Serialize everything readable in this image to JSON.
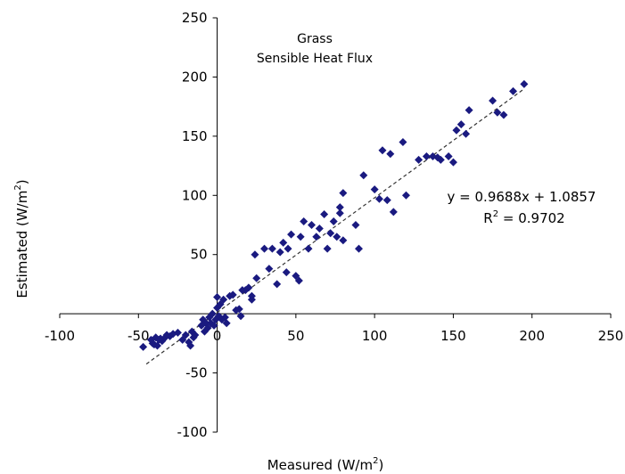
{
  "chart_data": {
    "type": "scatter",
    "title": "Grass",
    "subtitle": "Sensible Heat Flux",
    "xlabel": {
      "text": "Measured (W/m",
      "sup": "2",
      "end": ")"
    },
    "ylabel": {
      "text": "Estimated (W/m",
      "sup": "2",
      "end": ")"
    },
    "xlim": [
      -100,
      250
    ],
    "ylim": [
      -100,
      250
    ],
    "xticks": [
      -100,
      -50,
      0,
      50,
      100,
      150,
      200,
      250
    ],
    "yticks": [
      -100,
      -50,
      0,
      50,
      100,
      150,
      200,
      250
    ],
    "grid": false,
    "legend": "none",
    "marker_color": "#1a1a80",
    "trendline": {
      "slope": 0.9688,
      "intercept": 1.0857,
      "x_range": [
        -45,
        195
      ],
      "style": "dashed"
    },
    "equation": "y = 0.9688x + 1.0857",
    "r2": {
      "prefix": "R",
      "sup": "2",
      "value": " = 0.9702"
    },
    "series": [
      {
        "x": [
          -47,
          -42,
          -41,
          -40,
          -39,
          -38,
          -37,
          -36,
          -35,
          -33,
          -32,
          -30,
          -28,
          -25,
          -22,
          -20,
          -18,
          -17,
          -16,
          -15,
          -14,
          -10,
          -9,
          -8,
          -7,
          -6,
          -5,
          -4,
          -3,
          -2,
          -1,
          0,
          0,
          1,
          2,
          3,
          4,
          5,
          6,
          8,
          10,
          12,
          14,
          15,
          16,
          18,
          20,
          22,
          22,
          24,
          25,
          30,
          33,
          35,
          38,
          40,
          42,
          44,
          45,
          47,
          50,
          52,
          53,
          55,
          58,
          60,
          63,
          65,
          68,
          70,
          72,
          74,
          76,
          78,
          78,
          80,
          80,
          88,
          90,
          93,
          100,
          103,
          105,
          108,
          110,
          112,
          118,
          120,
          128,
          133,
          137,
          140,
          142,
          147,
          150,
          152,
          155,
          158,
          160,
          175,
          178,
          182,
          188,
          195
        ],
        "y": [
          -28,
          -22,
          -25,
          -26,
          -20,
          -27,
          -22,
          -21,
          -23,
          -20,
          -18,
          -19,
          -17,
          -16,
          -22,
          -18,
          -24,
          -27,
          -15,
          -20,
          -18,
          -10,
          -5,
          -15,
          -8,
          -12,
          -3,
          -8,
          0,
          -10,
          -5,
          5,
          14,
          -2,
          8,
          -5,
          12,
          -3,
          -8,
          15,
          16,
          3,
          4,
          -2,
          20,
          20,
          22,
          12,
          15,
          50,
          30,
          55,
          38,
          55,
          25,
          52,
          60,
          35,
          55,
          67,
          32,
          28,
          65,
          78,
          55,
          75,
          65,
          72,
          84,
          55,
          68,
          78,
          65,
          85,
          90,
          62,
          102,
          75,
          55,
          117,
          105,
          97,
          138,
          96,
          135,
          86,
          145,
          100,
          130,
          133,
          133,
          132,
          130,
          133,
          128,
          155,
          160,
          152,
          172,
          180,
          170,
          168,
          188,
          194
        ]
      }
    ]
  }
}
